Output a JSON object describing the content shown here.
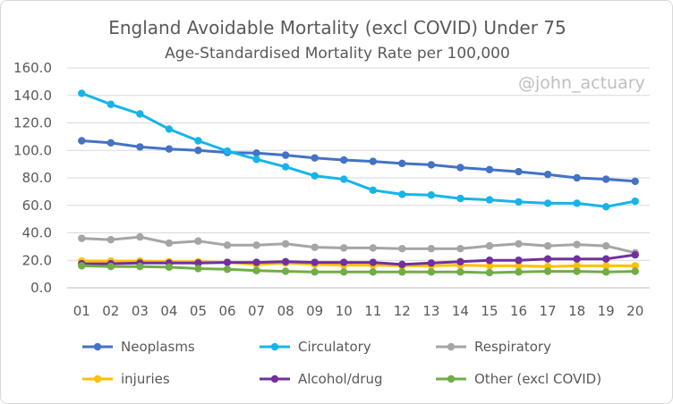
{
  "chart_data": {
    "type": "line",
    "title": "England Avoidable Mortality (excl COVID) Under 75",
    "subtitle": "Age-Standardised Mortality Rate per 100,000",
    "watermark": "@john_actuary",
    "xlabel": "",
    "ylabel": "",
    "categories": [
      "01",
      "02",
      "03",
      "04",
      "05",
      "06",
      "07",
      "08",
      "09",
      "10",
      "11",
      "12",
      "13",
      "14",
      "15",
      "16",
      "17",
      "18",
      "19",
      "20"
    ],
    "yticks": [
      "0.0",
      "20.0",
      "40.0",
      "60.0",
      "80.0",
      "100.0",
      "120.0",
      "140.0",
      "160.0"
    ],
    "ylim": [
      0,
      160
    ],
    "grid": true,
    "legend_position": "bottom",
    "series": [
      {
        "name": "Neoplasms",
        "color": "#4472c4",
        "values": [
          107,
          105.5,
          102.5,
          101,
          100,
          98.5,
          98,
          96.5,
          94.5,
          93,
          92,
          90.5,
          89.5,
          87.5,
          86,
          84.5,
          82.5,
          80,
          79,
          77.5
        ]
      },
      {
        "name": "Circulatory",
        "color": "#17b4e8",
        "values": [
          141.5,
          133.5,
          126.5,
          115.5,
          107,
          99.5,
          93.5,
          88,
          81.5,
          79,
          71,
          68,
          67.5,
          65,
          64,
          62.5,
          61.5,
          61.5,
          59,
          63
        ]
      },
      {
        "name": "Respiratory",
        "color": "#a5a5a5",
        "values": [
          36,
          35,
          37,
          32.5,
          34,
          31,
          31,
          32,
          29.5,
          29,
          29,
          28.5,
          28.5,
          28.5,
          30.5,
          32,
          30.5,
          31.5,
          30.5,
          25.5
        ]
      },
      {
        "name": "injuries",
        "color": "#ffc000",
        "values": [
          19.5,
          19.5,
          19.5,
          19,
          19,
          18.5,
          17,
          18,
          17,
          16.5,
          16.5,
          16,
          16,
          16.5,
          16,
          16,
          15.5,
          16,
          16,
          16
        ]
      },
      {
        "name": "Alcohol/drug",
        "color": "#7030a0",
        "values": [
          17.5,
          17.5,
          18,
          18,
          18,
          18.5,
          18.5,
          19,
          18.5,
          18.5,
          18.5,
          17,
          18,
          19,
          20,
          20,
          21,
          21,
          21,
          24
        ]
      },
      {
        "name": "Other (excl COVID)",
        "color": "#70ad47",
        "values": [
          16,
          15.5,
          15.5,
          15,
          14,
          13.5,
          12.5,
          12,
          11.5,
          11.5,
          11.5,
          11.5,
          11.5,
          11.5,
          11,
          11.5,
          12,
          12,
          11.5,
          12
        ]
      }
    ]
  }
}
